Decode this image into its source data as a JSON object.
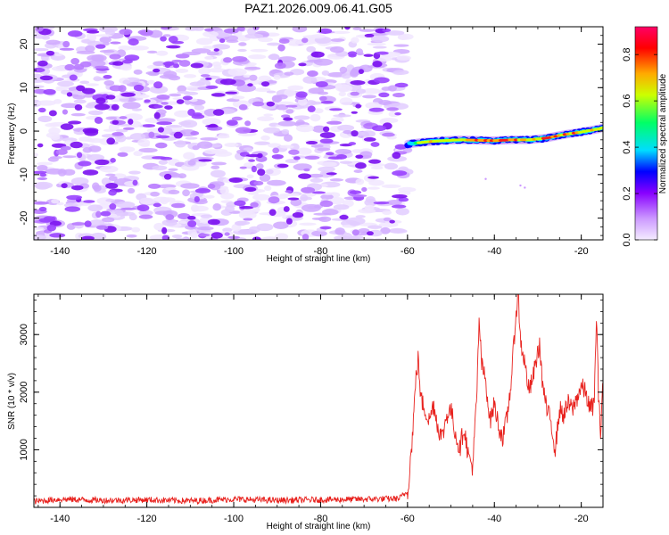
{
  "title": "PAZ1.2026.009.06.41.G05",
  "chart_data": [
    {
      "type": "heatmap",
      "title": "PAZ1.2026.009.06.41.G05",
      "xlabel": "Height of straight line (km)",
      "ylabel": "Frequency (Hz)",
      "xlim": [
        -146,
        -15
      ],
      "ylim": [
        -25,
        24
      ],
      "xticks": [
        -140,
        -120,
        -100,
        -80,
        -60,
        -40,
        -20
      ],
      "xtick_labels": [
        "-140",
        "-120",
        "-100",
        "-80",
        "-60",
        "-40",
        "-20"
      ],
      "yticks": [
        -20,
        -10,
        0,
        10,
        20
      ],
      "ytick_labels": [
        "-20",
        "-10",
        "0",
        "10",
        "20"
      ],
      "noise_region_x": [
        -146,
        -60
      ],
      "signal_track": {
        "x": [
          -60,
          -56,
          -52,
          -48,
          -44,
          -40,
          -36,
          -32,
          -28,
          -24,
          -20,
          -16,
          -15
        ],
        "frequency_hz": [
          -3,
          -2.5,
          -2.2,
          -2,
          -2.1,
          -2.2,
          -2,
          -2,
          -1.6,
          -0.8,
          -0.2,
          0.5,
          0.8
        ],
        "amplitude": [
          0.45,
          0.75,
          0.8,
          0.7,
          0.85,
          0.95,
          0.85,
          0.8,
          0.9,
          0.85,
          0.8,
          0.75,
          0.7
        ]
      },
      "colorbar": {
        "label": "Normalized spectral amplitude",
        "range": [
          0,
          0.92
        ],
        "ticks": [
          0,
          0.2,
          0.4,
          0.6,
          0.8
        ],
        "tick_labels": [
          "0.0",
          "0.2",
          "0.4",
          "0.6",
          "0.8"
        ],
        "colors": [
          "#ffffff",
          "#cc99ff",
          "#8800ff",
          "#0000ff",
          "#00ddff",
          "#00ff66",
          "#ccff00",
          "#ffaa00",
          "#ff0000",
          "#ff0066"
        ]
      }
    },
    {
      "type": "line",
      "xlabel": "Height of straight line (km)",
      "ylabel": "SNR (10 * v/v)",
      "xlim": [
        -146,
        -15
      ],
      "ylim": [
        0,
        3700
      ],
      "xticks": [
        -140,
        -120,
        -100,
        -80,
        -60,
        -40,
        -20
      ],
      "xtick_labels": [
        "-140",
        "-120",
        "-100",
        "-80",
        "-60",
        "-40",
        "-20"
      ],
      "yticks": [
        1000,
        2000,
        3000
      ],
      "ytick_labels": [
        "1000",
        "2000",
        "3000"
      ],
      "series": [
        {
          "name": "SNR",
          "color": "#e8221e",
          "x": [
            -146,
            -140,
            -130,
            -120,
            -110,
            -100,
            -90,
            -80,
            -70,
            -62,
            -60,
            -59,
            -58,
            -57.5,
            -57,
            -56,
            -55,
            -54,
            -53,
            -52,
            -51,
            -50,
            -49,
            -48,
            -47,
            -46,
            -45,
            -44,
            -43.5,
            -43,
            -42,
            -41,
            -40,
            -39,
            -38,
            -37,
            -36,
            -35,
            -34.5,
            -34,
            -33,
            -32,
            -31,
            -30,
            -29.5,
            -29,
            -28,
            -27,
            -26,
            -25,
            -24,
            -23,
            -22,
            -21,
            -20,
            -19,
            -18,
            -17,
            -16.5,
            -16,
            -15.5,
            -15
          ],
          "y": [
            80,
            120,
            100,
            110,
            90,
            120,
            100,
            110,
            120,
            130,
            250,
            1100,
            2300,
            2600,
            1900,
            1700,
            1500,
            1800,
            1400,
            1200,
            1600,
            1700,
            1300,
            1000,
            1400,
            900,
            700,
            2000,
            3300,
            2500,
            2200,
            1500,
            1800,
            1400,
            1200,
            1600,
            2300,
            3400,
            3700,
            2900,
            2500,
            2000,
            2300,
            2700,
            2800,
            2200,
            1700,
            1500,
            1000,
            1700,
            1600,
            1800,
            1700,
            1900,
            2100,
            2000,
            1700,
            1800,
            3400,
            1800,
            1300,
            2400
          ]
        }
      ]
    }
  ]
}
